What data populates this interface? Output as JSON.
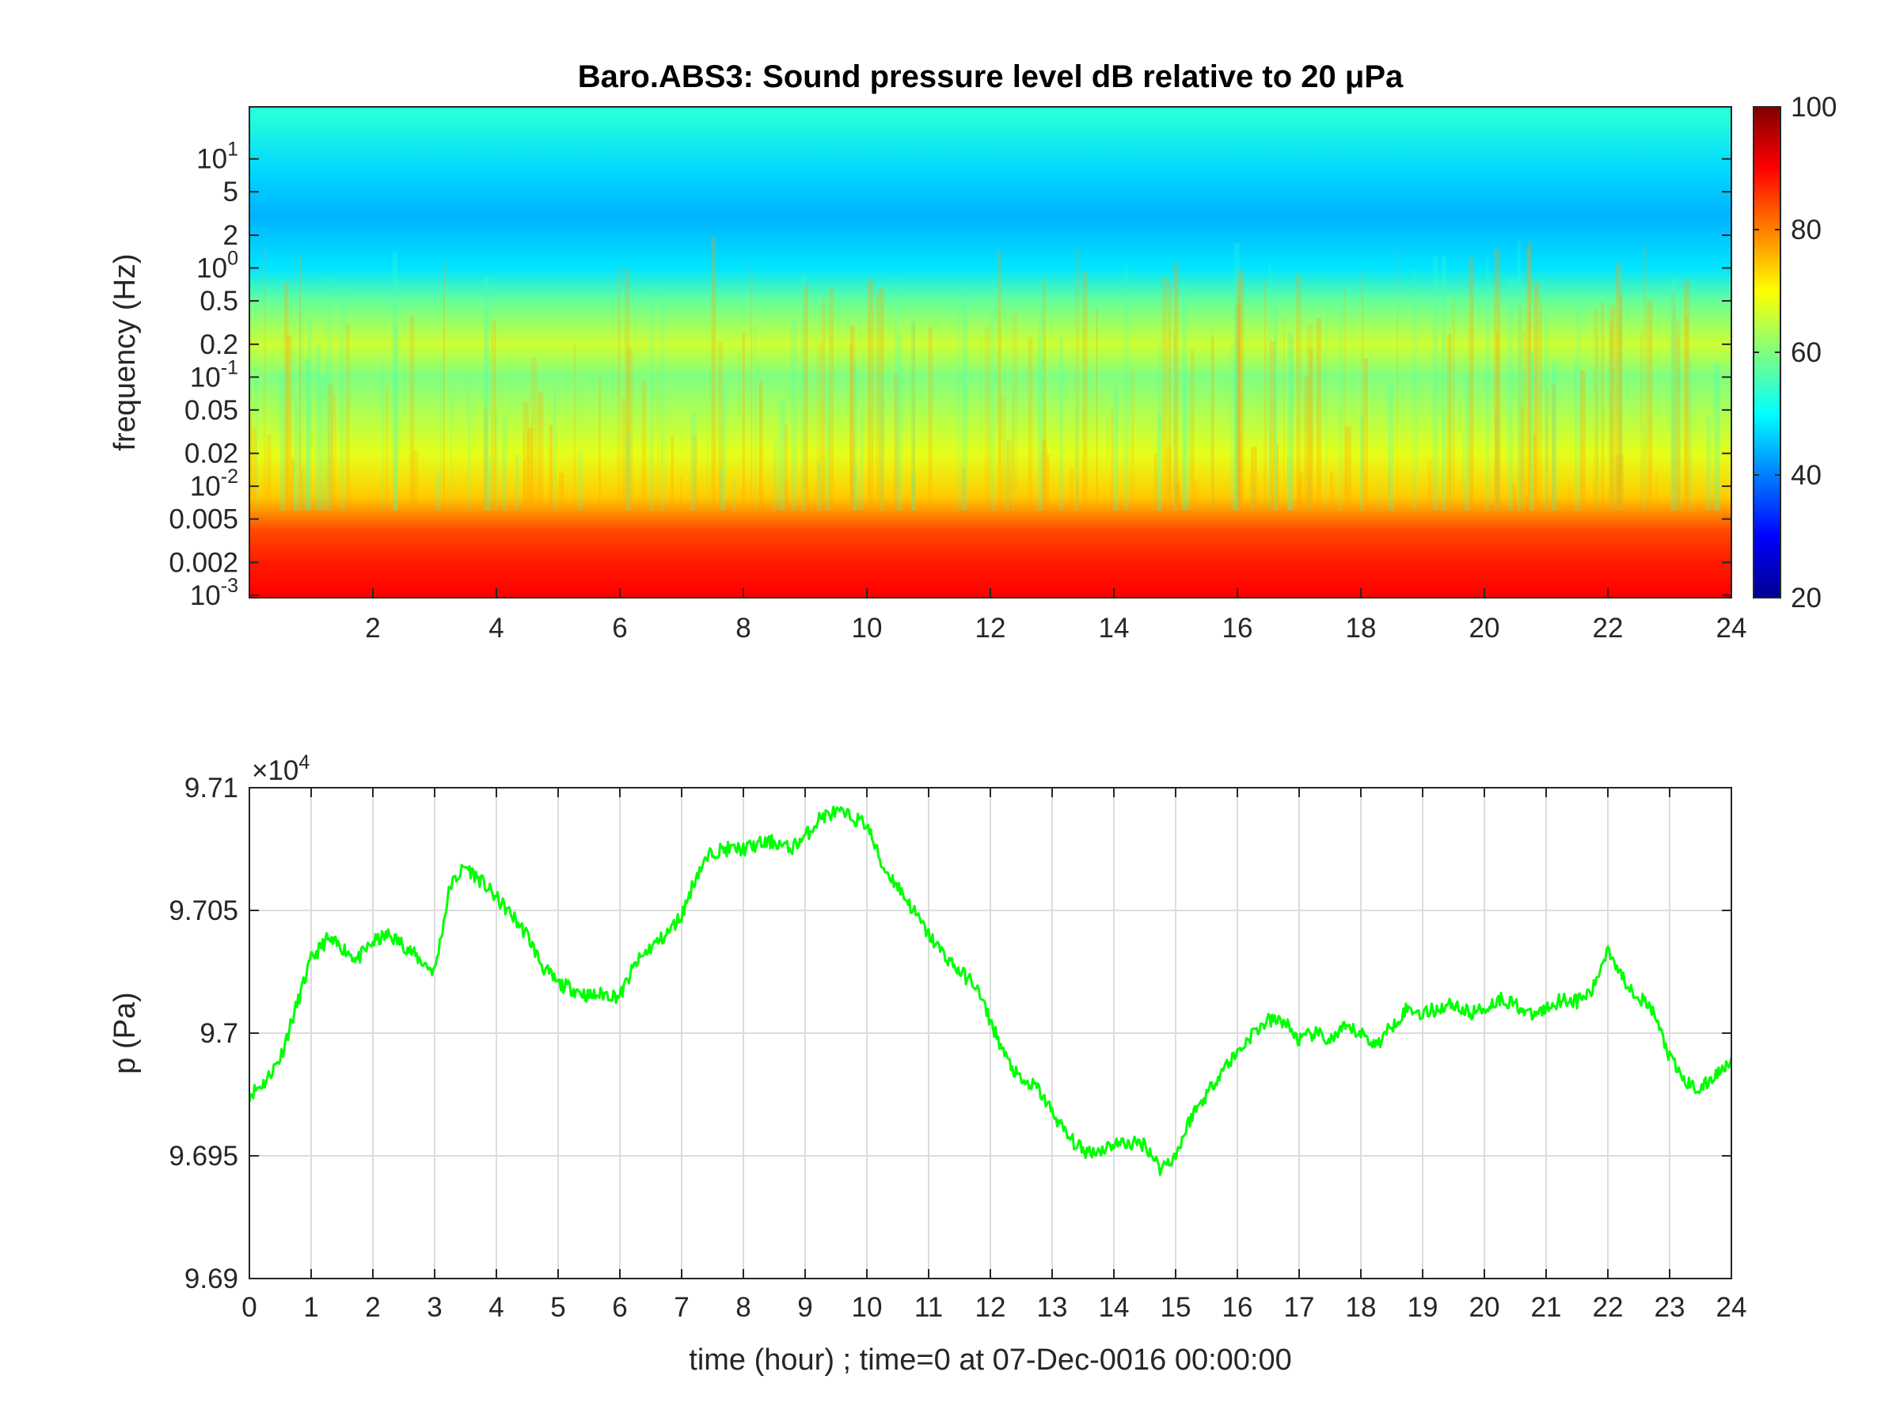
{
  "chart_data": [
    {
      "type": "heatmap",
      "title": "Baro.ABS3: Sound pressure level dB relative to 20 μPa",
      "xlabel": "",
      "ylabel": "frequency (Hz)",
      "xlim": [
        0,
        24
      ],
      "ylim": [
        0.00095,
        30
      ],
      "yscale": "log",
      "x_ticks": [
        2,
        4,
        6,
        8,
        10,
        12,
        14,
        16,
        18,
        20,
        22,
        24
      ],
      "x_tick_labels": [
        "2",
        "4",
        "6",
        "8",
        "10",
        "12",
        "14",
        "16",
        "18",
        "20",
        "22",
        "24"
      ],
      "y_ticks": [
        0.001,
        0.002,
        0.005,
        0.01,
        0.02,
        0.05,
        0.1,
        0.2,
        0.5,
        1,
        2,
        5,
        10
      ],
      "y_tick_labels": [
        {
          "base": "10",
          "exp": "-3"
        },
        {
          "base": "0.002",
          "exp": ""
        },
        {
          "base": "0.005",
          "exp": ""
        },
        {
          "base": "10",
          "exp": "-2"
        },
        {
          "base": "0.02",
          "exp": ""
        },
        {
          "base": "0.05",
          "exp": ""
        },
        {
          "base": "10",
          "exp": "-1"
        },
        {
          "base": "0.2",
          "exp": ""
        },
        {
          "base": "0.5",
          "exp": ""
        },
        {
          "base": "10",
          "exp": "0"
        },
        {
          "base": "2",
          "exp": ""
        },
        {
          "base": "5",
          "exp": ""
        },
        {
          "base": "10",
          "exp": "1"
        }
      ],
      "colorbar": {
        "colormap": "jet",
        "clim": [
          20,
          100
        ],
        "ticks": [
          20,
          40,
          60,
          80,
          100
        ],
        "tick_labels": [
          "20",
          "40",
          "60",
          "80",
          "100"
        ]
      },
      "level_profile_db": [
        {
          "frequency_hz": 0.001,
          "db": 90
        },
        {
          "frequency_hz": 0.002,
          "db": 88
        },
        {
          "frequency_hz": 0.004,
          "db": 84
        },
        {
          "frequency_hz": 0.008,
          "db": 74
        },
        {
          "frequency_hz": 0.02,
          "db": 68
        },
        {
          "frequency_hz": 0.1,
          "db": 60
        },
        {
          "frequency_hz": 0.2,
          "db": 66
        },
        {
          "frequency_hz": 0.5,
          "db": 58
        },
        {
          "frequency_hz": 1,
          "db": 48
        },
        {
          "frequency_hz": 3,
          "db": 44
        },
        {
          "frequency_hz": 8,
          "db": 47
        },
        {
          "frequency_hz": 25,
          "db": 53
        }
      ]
    },
    {
      "type": "line",
      "title": "",
      "xlabel": "time (hour) ; time=0 at 07-Dec-0016 00:00:00",
      "ylabel": "p (Pa)",
      "exponent_label": {
        "prefix": "×10",
        "exp": "4"
      },
      "xlim": [
        0,
        24
      ],
      "ylim": [
        96900,
        97100
      ],
      "grid": true,
      "x_ticks": [
        0,
        1,
        2,
        3,
        4,
        5,
        6,
        7,
        8,
        9,
        10,
        11,
        12,
        13,
        14,
        15,
        16,
        17,
        18,
        19,
        20,
        21,
        22,
        23,
        24
      ],
      "x_tick_labels": [
        "0",
        "1",
        "2",
        "3",
        "4",
        "5",
        "6",
        "7",
        "8",
        "9",
        "10",
        "11",
        "12",
        "13",
        "14",
        "15",
        "16",
        "17",
        "18",
        "19",
        "20",
        "21",
        "22",
        "23",
        "24"
      ],
      "y_ticks": [
        96900,
        96950,
        97000,
        97050,
        97100
      ],
      "y_tick_labels": [
        "9.69",
        "9.695",
        "9.7",
        "9.705",
        "9.71"
      ],
      "series": [
        {
          "color": "#00ff00",
          "x": [
            0,
            0.25,
            0.5,
            0.75,
            1,
            1.25,
            1.5,
            1.75,
            2,
            2.25,
            2.5,
            2.75,
            3,
            3.25,
            3.5,
            3.75,
            4,
            4.25,
            4.5,
            4.75,
            5,
            5.25,
            5.5,
            5.75,
            6,
            6.25,
            6.5,
            6.75,
            7,
            7.25,
            7.5,
            7.75,
            8,
            8.25,
            8.5,
            8.75,
            9,
            9.25,
            9.5,
            9.75,
            10,
            10.25,
            10.5,
            10.75,
            11,
            11.25,
            11.5,
            11.75,
            12,
            12.25,
            12.5,
            12.75,
            13,
            13.25,
            13.5,
            13.75,
            14,
            14.25,
            14.5,
            14.75,
            15,
            15.25,
            15.5,
            15.75,
            16,
            16.25,
            16.5,
            16.75,
            17,
            17.25,
            17.5,
            17.75,
            18,
            18.25,
            18.5,
            18.75,
            19,
            19.25,
            19.5,
            19.75,
            20,
            20.25,
            20.5,
            20.75,
            21,
            21.25,
            21.5,
            21.75,
            22,
            22.25,
            22.5,
            22.75,
            23,
            23.25,
            23.5,
            23.75,
            24
          ],
          "y": [
            96975,
            96980,
            96990,
            97010,
            97030,
            97038,
            97035,
            97030,
            97037,
            97040,
            97036,
            97030,
            97025,
            97060,
            97068,
            97062,
            97055,
            97048,
            97040,
            97027,
            97020,
            97018,
            97015,
            97016,
            97015,
            97028,
            97035,
            97040,
            97048,
            97065,
            97074,
            97075,
            97075,
            97077,
            97078,
            97075,
            97080,
            97088,
            97090,
            97088,
            97085,
            97068,
            97060,
            97050,
            97040,
            97032,
            97025,
            97020,
            97005,
            96990,
            96980,
            96978,
            96968,
            96958,
            96952,
            96952,
            96955,
            96955,
            96955,
            96945,
            96950,
            96966,
            96975,
            96985,
            96992,
            97000,
            97005,
            97005,
            96997,
            97000,
            96997,
            97002,
            97000,
            96995,
            97003,
            97010,
            97008,
            97010,
            97012,
            97008,
            97010,
            97014,
            97012,
            97007,
            97010,
            97014,
            97013,
            97017,
            97035,
            97022,
            97015,
            97008,
            96990,
            96980,
            96977,
            96983,
            96990
          ]
        }
      ]
    }
  ]
}
